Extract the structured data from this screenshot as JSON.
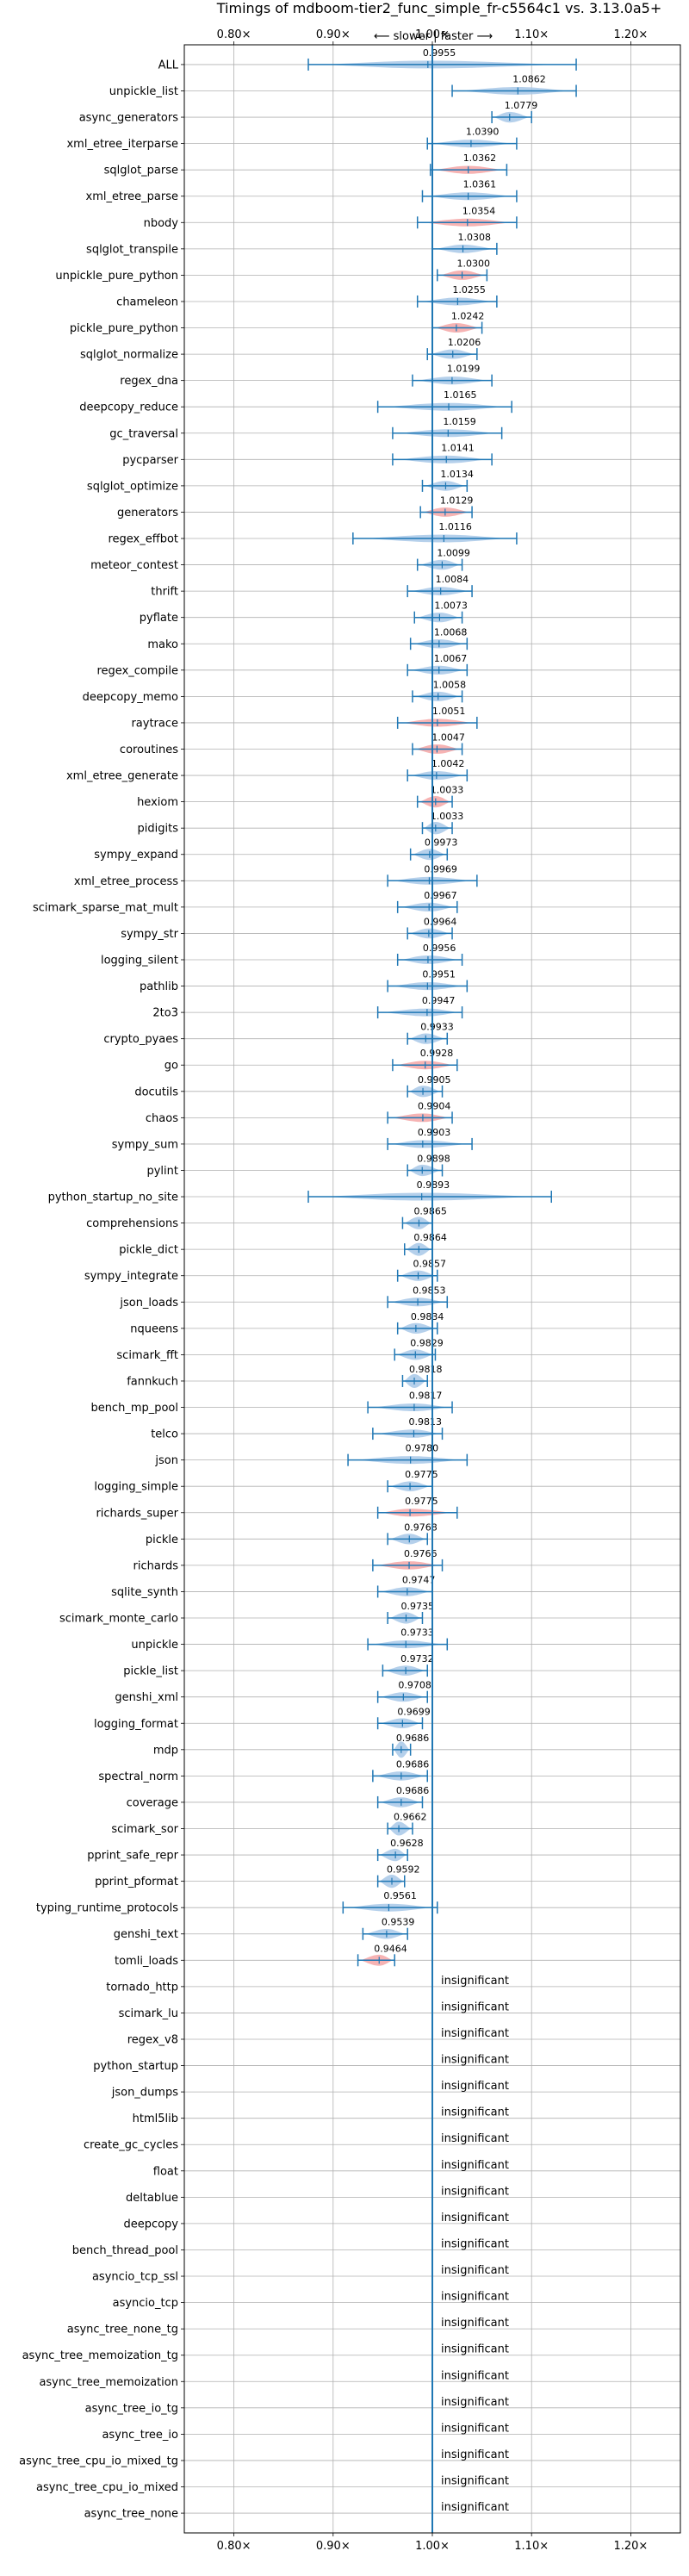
{
  "chart_data": {
    "type": "violin",
    "title": "Timings of mdboom-tier2_func_simple_fr-c5564c1 vs. 3.13.0a5+",
    "subtitle": "⟵ slower  |  faster ⟶",
    "xlim": [
      0.75,
      1.25
    ],
    "xticks": [
      0.8,
      0.9,
      1.0,
      1.1,
      1.2
    ],
    "xtick_labels": [
      "0.80×",
      "0.90×",
      "1.00×",
      "1.10×",
      "1.20×"
    ],
    "grid": true,
    "colors": {
      "faster": "#a8c8e8",
      "slower": "#f4a6a6",
      "line": "#1f77b4"
    },
    "benchmarks": [
      {
        "name": "ALL",
        "value": 0.9955,
        "label": "0.9955",
        "lo": 0.875,
        "hi": 1.145,
        "color": "blue"
      },
      {
        "name": "unpickle_list",
        "value": 1.0862,
        "label": "1.0862",
        "lo": 1.02,
        "hi": 1.145,
        "color": "blue"
      },
      {
        "name": "async_generators",
        "value": 1.0779,
        "label": "1.0779",
        "lo": 1.06,
        "hi": 1.1,
        "color": "blue"
      },
      {
        "name": "xml_etree_iterparse",
        "value": 1.039,
        "label": "1.0390",
        "lo": 0.995,
        "hi": 1.085,
        "color": "blue"
      },
      {
        "name": "sqlglot_parse",
        "value": 1.0362,
        "label": "1.0362",
        "lo": 0.998,
        "hi": 1.075,
        "color": "red"
      },
      {
        "name": "xml_etree_parse",
        "value": 1.0361,
        "label": "1.0361",
        "lo": 0.99,
        "hi": 1.085,
        "color": "blue"
      },
      {
        "name": "nbody",
        "value": 1.0354,
        "label": "1.0354",
        "lo": 0.985,
        "hi": 1.085,
        "color": "red"
      },
      {
        "name": "sqlglot_transpile",
        "value": 1.0308,
        "label": "1.0308",
        "lo": 1.0,
        "hi": 1.065,
        "color": "blue"
      },
      {
        "name": "unpickle_pure_python",
        "value": 1.03,
        "label": "1.0300",
        "lo": 1.005,
        "hi": 1.055,
        "color": "red"
      },
      {
        "name": "chameleon",
        "value": 1.0255,
        "label": "1.0255",
        "lo": 0.985,
        "hi": 1.065,
        "color": "blue"
      },
      {
        "name": "pickle_pure_python",
        "value": 1.0242,
        "label": "1.0242",
        "lo": 1.0,
        "hi": 1.05,
        "color": "red"
      },
      {
        "name": "sqlglot_normalize",
        "value": 1.0206,
        "label": "1.0206",
        "lo": 0.995,
        "hi": 1.045,
        "color": "blue"
      },
      {
        "name": "regex_dna",
        "value": 1.0199,
        "label": "1.0199",
        "lo": 0.98,
        "hi": 1.06,
        "color": "blue"
      },
      {
        "name": "deepcopy_reduce",
        "value": 1.0165,
        "label": "1.0165",
        "lo": 0.945,
        "hi": 1.08,
        "color": "blue"
      },
      {
        "name": "gc_traversal",
        "value": 1.0159,
        "label": "1.0159",
        "lo": 0.96,
        "hi": 1.07,
        "color": "blue"
      },
      {
        "name": "pycparser",
        "value": 1.0141,
        "label": "1.0141",
        "lo": 0.96,
        "hi": 1.06,
        "color": "blue"
      },
      {
        "name": "sqlglot_optimize",
        "value": 1.0134,
        "label": "1.0134",
        "lo": 0.99,
        "hi": 1.035,
        "color": "blue"
      },
      {
        "name": "generators",
        "value": 1.0129,
        "label": "1.0129",
        "lo": 0.988,
        "hi": 1.04,
        "color": "red"
      },
      {
        "name": "regex_effbot",
        "value": 1.0116,
        "label": "1.0116",
        "lo": 0.92,
        "hi": 1.085,
        "color": "blue"
      },
      {
        "name": "meteor_contest",
        "value": 1.0099,
        "label": "1.0099",
        "lo": 0.985,
        "hi": 1.03,
        "color": "blue"
      },
      {
        "name": "thrift",
        "value": 1.0084,
        "label": "1.0084",
        "lo": 0.975,
        "hi": 1.04,
        "color": "blue"
      },
      {
        "name": "pyflate",
        "value": 1.0073,
        "label": "1.0073",
        "lo": 0.982,
        "hi": 1.03,
        "color": "blue"
      },
      {
        "name": "mako",
        "value": 1.0068,
        "label": "1.0068",
        "lo": 0.978,
        "hi": 1.035,
        "color": "blue"
      },
      {
        "name": "regex_compile",
        "value": 1.0067,
        "label": "1.0067",
        "lo": 0.975,
        "hi": 1.035,
        "color": "blue"
      },
      {
        "name": "deepcopy_memo",
        "value": 1.0058,
        "label": "1.0058",
        "lo": 0.98,
        "hi": 1.03,
        "color": "blue"
      },
      {
        "name": "raytrace",
        "value": 1.0051,
        "label": "1.0051",
        "lo": 0.965,
        "hi": 1.045,
        "color": "red"
      },
      {
        "name": "coroutines",
        "value": 1.0047,
        "label": "1.0047",
        "lo": 0.98,
        "hi": 1.03,
        "color": "red"
      },
      {
        "name": "xml_etree_generate",
        "value": 1.0042,
        "label": "1.0042",
        "lo": 0.975,
        "hi": 1.035,
        "color": "blue"
      },
      {
        "name": "hexiom",
        "value": 1.0033,
        "label": "1.0033",
        "lo": 0.985,
        "hi": 1.02,
        "color": "red"
      },
      {
        "name": "pidigits",
        "value": 1.0033,
        "label": "1.0033",
        "lo": 0.99,
        "hi": 1.02,
        "color": "blue"
      },
      {
        "name": "sympy_expand",
        "value": 0.9973,
        "label": "0.9973",
        "lo": 0.978,
        "hi": 1.015,
        "color": "blue"
      },
      {
        "name": "xml_etree_process",
        "value": 0.9969,
        "label": "0.9969",
        "lo": 0.955,
        "hi": 1.045,
        "color": "blue"
      },
      {
        "name": "scimark_sparse_mat_mult",
        "value": 0.9967,
        "label": "0.9967",
        "lo": 0.965,
        "hi": 1.025,
        "color": "blue"
      },
      {
        "name": "sympy_str",
        "value": 0.9964,
        "label": "0.9964",
        "lo": 0.975,
        "hi": 1.02,
        "color": "blue"
      },
      {
        "name": "logging_silent",
        "value": 0.9956,
        "label": "0.9956",
        "lo": 0.965,
        "hi": 1.03,
        "color": "blue"
      },
      {
        "name": "pathlib",
        "value": 0.9951,
        "label": "0.9951",
        "lo": 0.955,
        "hi": 1.035,
        "color": "blue"
      },
      {
        "name": "2to3",
        "value": 0.9947,
        "label": "0.9947",
        "lo": 0.945,
        "hi": 1.03,
        "color": "blue"
      },
      {
        "name": "crypto_pyaes",
        "value": 0.9933,
        "label": "0.9933",
        "lo": 0.975,
        "hi": 1.015,
        "color": "blue"
      },
      {
        "name": "go",
        "value": 0.9928,
        "label": "0.9928",
        "lo": 0.96,
        "hi": 1.025,
        "color": "red"
      },
      {
        "name": "docutils",
        "value": 0.9905,
        "label": "0.9905",
        "lo": 0.975,
        "hi": 1.01,
        "color": "blue"
      },
      {
        "name": "chaos",
        "value": 0.9904,
        "label": "0.9904",
        "lo": 0.955,
        "hi": 1.02,
        "color": "red"
      },
      {
        "name": "sympy_sum",
        "value": 0.9903,
        "label": "0.9903",
        "lo": 0.955,
        "hi": 1.04,
        "color": "blue"
      },
      {
        "name": "pylint",
        "value": 0.9898,
        "label": "0.9898",
        "lo": 0.975,
        "hi": 1.01,
        "color": "blue"
      },
      {
        "name": "python_startup_no_site",
        "value": 0.9893,
        "label": "0.9893",
        "lo": 0.875,
        "hi": 1.12,
        "color": "blue"
      },
      {
        "name": "comprehensions",
        "value": 0.9865,
        "label": "0.9865",
        "lo": 0.97,
        "hi": 1.0,
        "color": "blue"
      },
      {
        "name": "pickle_dict",
        "value": 0.9864,
        "label": "0.9864",
        "lo": 0.972,
        "hi": 1.0,
        "color": "blue"
      },
      {
        "name": "sympy_integrate",
        "value": 0.9857,
        "label": "0.9857",
        "lo": 0.965,
        "hi": 1.005,
        "color": "blue"
      },
      {
        "name": "json_loads",
        "value": 0.9853,
        "label": "0.9853",
        "lo": 0.955,
        "hi": 1.015,
        "color": "blue"
      },
      {
        "name": "nqueens",
        "value": 0.9834,
        "label": "0.9834",
        "lo": 0.965,
        "hi": 1.005,
        "color": "blue"
      },
      {
        "name": "scimark_fft",
        "value": 0.9829,
        "label": "0.9829",
        "lo": 0.962,
        "hi": 1.003,
        "color": "blue"
      },
      {
        "name": "fannkuch",
        "value": 0.9818,
        "label": "0.9818",
        "lo": 0.97,
        "hi": 0.995,
        "color": "blue"
      },
      {
        "name": "bench_mp_pool",
        "value": 0.9817,
        "label": "0.9817",
        "lo": 0.935,
        "hi": 1.02,
        "color": "blue"
      },
      {
        "name": "telco",
        "value": 0.9813,
        "label": "0.9813",
        "lo": 0.94,
        "hi": 1.01,
        "color": "blue"
      },
      {
        "name": "json",
        "value": 0.978,
        "label": "0.9780",
        "lo": 0.915,
        "hi": 1.035,
        "color": "blue"
      },
      {
        "name": "logging_simple",
        "value": 0.9775,
        "label": "0.9775",
        "lo": 0.955,
        "hi": 1.0,
        "color": "blue"
      },
      {
        "name": "richards_super",
        "value": 0.9775,
        "label": "0.9775",
        "lo": 0.945,
        "hi": 1.025,
        "color": "red"
      },
      {
        "name": "pickle",
        "value": 0.9768,
        "label": "0.9768",
        "lo": 0.955,
        "hi": 0.995,
        "color": "blue"
      },
      {
        "name": "richards",
        "value": 0.9766,
        "label": "0.9766",
        "lo": 0.94,
        "hi": 1.01,
        "color": "red"
      },
      {
        "name": "sqlite_synth",
        "value": 0.9747,
        "label": "0.9747",
        "lo": 0.945,
        "hi": 1.0,
        "color": "blue"
      },
      {
        "name": "scimark_monte_carlo",
        "value": 0.9735,
        "label": "0.9735",
        "lo": 0.955,
        "hi": 0.99,
        "color": "blue"
      },
      {
        "name": "unpickle",
        "value": 0.9733,
        "label": "0.9733",
        "lo": 0.935,
        "hi": 1.015,
        "color": "blue"
      },
      {
        "name": "pickle_list",
        "value": 0.9732,
        "label": "0.9732",
        "lo": 0.95,
        "hi": 0.995,
        "color": "blue"
      },
      {
        "name": "genshi_xml",
        "value": 0.9708,
        "label": "0.9708",
        "lo": 0.945,
        "hi": 0.995,
        "color": "blue"
      },
      {
        "name": "logging_format",
        "value": 0.9699,
        "label": "0.9699",
        "lo": 0.945,
        "hi": 0.99,
        "color": "blue"
      },
      {
        "name": "mdp",
        "value": 0.9686,
        "label": "0.9686",
        "lo": 0.96,
        "hi": 0.978,
        "color": "blue"
      },
      {
        "name": "spectral_norm",
        "value": 0.9686,
        "label": "0.9686",
        "lo": 0.94,
        "hi": 0.995,
        "color": "blue"
      },
      {
        "name": "coverage",
        "value": 0.9686,
        "label": "0.9686",
        "lo": 0.945,
        "hi": 0.99,
        "color": "blue"
      },
      {
        "name": "scimark_sor",
        "value": 0.9662,
        "label": "0.9662",
        "lo": 0.955,
        "hi": 0.98,
        "color": "blue"
      },
      {
        "name": "pprint_safe_repr",
        "value": 0.9628,
        "label": "0.9628",
        "lo": 0.945,
        "hi": 0.975,
        "color": "blue"
      },
      {
        "name": "pprint_pformat",
        "value": 0.9592,
        "label": "0.9592",
        "lo": 0.945,
        "hi": 0.972,
        "color": "blue"
      },
      {
        "name": "typing_runtime_protocols",
        "value": 0.9561,
        "label": "0.9561",
        "lo": 0.91,
        "hi": 1.005,
        "color": "blue"
      },
      {
        "name": "genshi_text",
        "value": 0.9539,
        "label": "0.9539",
        "lo": 0.93,
        "hi": 0.975,
        "color": "blue"
      },
      {
        "name": "tomli_loads",
        "value": 0.9464,
        "label": "0.9464",
        "lo": 0.925,
        "hi": 0.962,
        "color": "red"
      }
    ],
    "insignificant_label": "insignificant",
    "insignificant": [
      "tornado_http",
      "scimark_lu",
      "regex_v8",
      "python_startup",
      "json_dumps",
      "html5lib",
      "create_gc_cycles",
      "float",
      "deltablue",
      "deepcopy",
      "bench_thread_pool",
      "asyncio_tcp_ssl",
      "asyncio_tcp",
      "async_tree_none_tg",
      "async_tree_memoization_tg",
      "async_tree_memoization",
      "async_tree_io_tg",
      "async_tree_io",
      "async_tree_cpu_io_mixed_tg",
      "async_tree_cpu_io_mixed",
      "async_tree_none"
    ]
  }
}
